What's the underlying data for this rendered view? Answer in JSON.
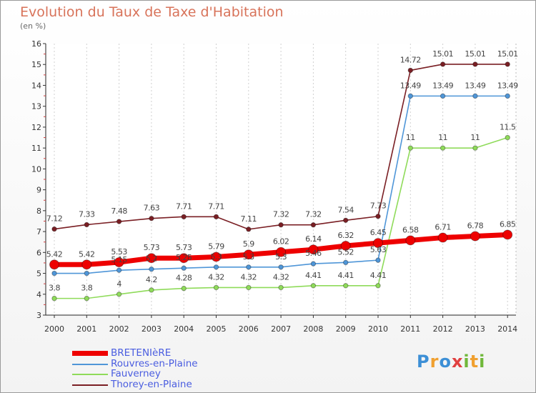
{
  "page": {
    "title": "Evolution du Taux de Taxe d'Habitation",
    "subtitle": "(en %)",
    "logo": "Proxiti"
  },
  "chart_data": {
    "type": "line",
    "title": "Evolution du Taux de Taxe d'Habitation",
    "subtitle": "(en %)",
    "xlabel": "",
    "ylabel": "",
    "ylim": [
      3,
      16
    ],
    "yticks": [
      3,
      4,
      5,
      6,
      7,
      8,
      9,
      10,
      11,
      12,
      13,
      14,
      15,
      16
    ],
    "x": [
      2000,
      2001,
      2002,
      2003,
      2004,
      2005,
      2006,
      2007,
      2008,
      2009,
      2010,
      2011,
      2012,
      2013,
      2014
    ],
    "legend_position": "bottom-left",
    "series": [
      {
        "name": "BRETENIèRE",
        "color": "#ee0000",
        "emphasis": true,
        "values": [
          5.42,
          5.42,
          5.53,
          5.73,
          5.73,
          5.79,
          5.9,
          6.02,
          6.14,
          6.32,
          6.45,
          6.58,
          6.71,
          6.78,
          6.85
        ],
        "labels": [
          "5.42",
          "5.42",
          "5.53",
          "5.73",
          "5.73",
          "5.79",
          "5.9",
          "6.02",
          "6.14",
          "6.32",
          "6.45",
          "6.58",
          "6.71",
          "6.78",
          "6.85"
        ]
      },
      {
        "name": "Rouvres-en-Plaine",
        "color": "#4f96d8",
        "emphasis": false,
        "values": [
          5.0,
          5.0,
          5.15,
          5.2,
          5.25,
          5.3,
          5.3,
          5.3,
          5.46,
          5.52,
          5.63,
          13.49,
          13.49,
          13.49,
          13.49
        ],
        "labels": [
          "",
          "",
          "5.15",
          "5.2",
          "5.25",
          "5.3",
          "5.3",
          "5.3",
          "5.46",
          "5.52",
          "5.63",
          "13.49",
          "13.49",
          "13.49",
          "13.49"
        ]
      },
      {
        "name": "Fauverney",
        "color": "#8fdb5a",
        "emphasis": false,
        "values": [
          3.8,
          3.8,
          4.0,
          4.2,
          4.28,
          4.32,
          4.32,
          4.32,
          4.41,
          4.41,
          4.41,
          11.0,
          11.0,
          11.0,
          11.5
        ],
        "labels": [
          "3.8",
          "3.8",
          "4",
          "4.2",
          "4.28",
          "4.32",
          "4.32",
          "4.32",
          "4.41",
          "4.41",
          "4.41",
          "11",
          "11",
          "11",
          "11.5"
        ]
      },
      {
        "name": "Thorey-en-Plaine",
        "color": "#7a1f24",
        "emphasis": false,
        "values": [
          7.12,
          7.33,
          7.48,
          7.63,
          7.71,
          7.71,
          7.11,
          7.32,
          7.32,
          7.54,
          7.73,
          14.72,
          15.01,
          15.01,
          15.01
        ],
        "labels": [
          "7.12",
          "7.33",
          "7.48",
          "7.63",
          "7.71",
          "7.71",
          "7.11",
          "7.32",
          "7.32",
          "7.54",
          "7.73",
          "14.72",
          "15.01",
          "15.01",
          "15.01"
        ]
      }
    ]
  }
}
